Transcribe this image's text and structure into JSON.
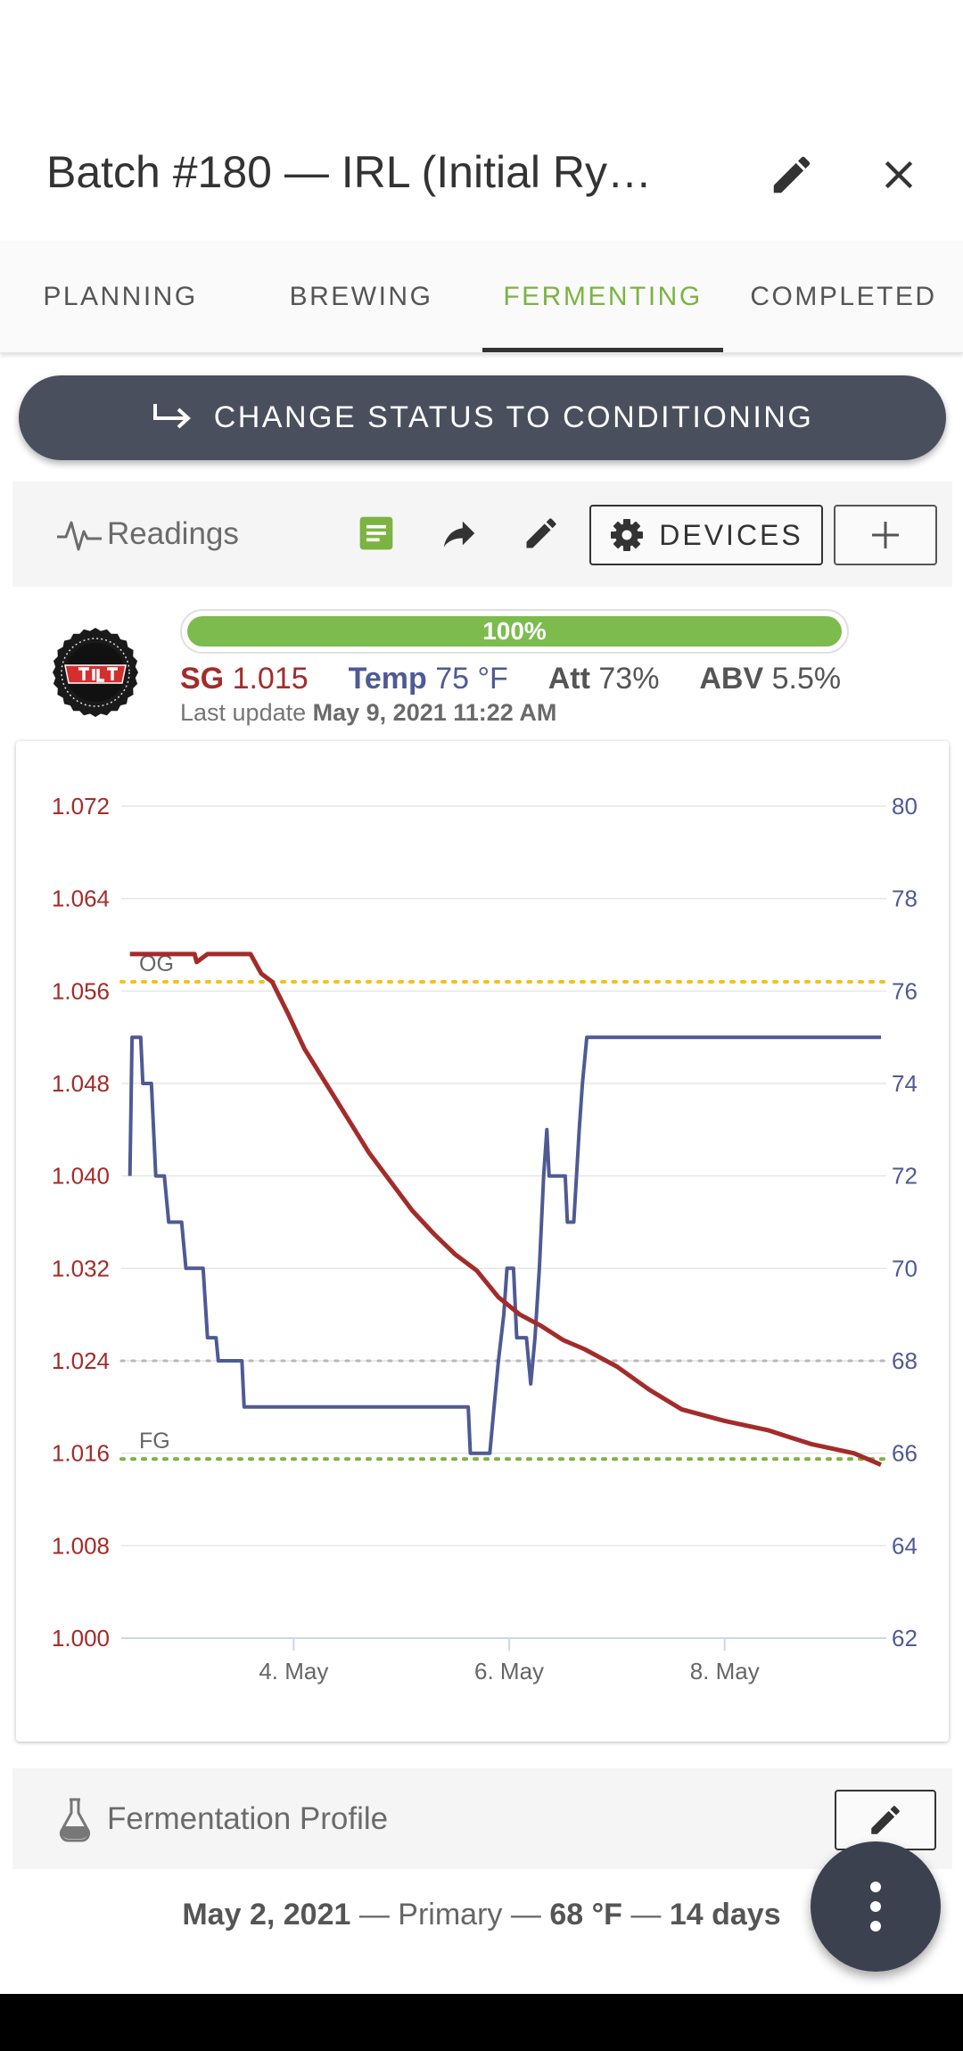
{
  "header": {
    "title": "Batch #180 — IRL (Initial Ry…"
  },
  "tabs": [
    {
      "label": "PLANNING",
      "active": false
    },
    {
      "label": "BREWING",
      "active": false
    },
    {
      "label": "FERMENTING",
      "active": true
    },
    {
      "label": "COMPLETED",
      "active": false
    }
  ],
  "status_button": {
    "label": "CHANGE STATUS TO CONDITIONING"
  },
  "readings": {
    "label": "Readings",
    "devices_label": "DEVICES"
  },
  "device": {
    "progress_text": "100%",
    "progress_value": 100,
    "sg_label": "SG",
    "sg_value": "1.015",
    "temp_label": "Temp",
    "temp_value": "75 °F",
    "att_label": "Att",
    "att_value": "73%",
    "abv_label": "ABV",
    "abv_value": "5.5%",
    "last_update_label": "Last update",
    "last_update_value": "May 9, 2021 11:22 AM"
  },
  "colors": {
    "gravity": "#a32c2a",
    "temperature": "#4f5a94",
    "accent_green": "#7cb342",
    "og_line": "#f0c419",
    "fg_line": "#7cb342",
    "target_temp_line": "#b8b8b8"
  },
  "chart_data": {
    "type": "line",
    "x_unit": "day of May 2021",
    "x_ticks": [
      "4. May",
      "6. May",
      "8. May"
    ],
    "x_tick_values": [
      4,
      6,
      8
    ],
    "xlim": [
      2.4,
      9.5
    ],
    "y_left": {
      "ticks": [
        "1.072",
        "1.064",
        "1.056",
        "1.048",
        "1.040",
        "1.032",
        "1.024",
        "1.016",
        "1.008",
        "1.000"
      ],
      "range": [
        1.0,
        1.072
      ]
    },
    "y_right": {
      "ticks": [
        "80",
        "78",
        "76",
        "74",
        "72",
        "70",
        "68",
        "66",
        "64",
        "62"
      ],
      "range": [
        62,
        80
      ]
    },
    "annotations": [
      {
        "label": "OG",
        "gravity": 1.0568
      },
      {
        "label": "FG",
        "gravity": 1.0155
      }
    ],
    "target_temperature": 68,
    "series": [
      {
        "axis": "left",
        "color": "#a32c2a",
        "points": [
          [
            2.48,
            1.0592
          ],
          [
            3.08,
            1.0592
          ],
          [
            3.1,
            1.0585
          ],
          [
            3.2,
            1.0592
          ],
          [
            3.6,
            1.0592
          ],
          [
            3.7,
            1.0575
          ],
          [
            3.8,
            1.0568
          ],
          [
            3.95,
            1.054
          ],
          [
            4.1,
            1.051
          ],
          [
            4.3,
            1.048
          ],
          [
            4.5,
            1.045
          ],
          [
            4.7,
            1.042
          ],
          [
            4.9,
            1.0395
          ],
          [
            5.1,
            1.037
          ],
          [
            5.3,
            1.035
          ],
          [
            5.5,
            1.0332
          ],
          [
            5.7,
            1.0318
          ],
          [
            5.9,
            1.0295
          ],
          [
            6.1,
            1.028
          ],
          [
            6.3,
            1.027
          ],
          [
            6.5,
            1.0258
          ],
          [
            6.7,
            1.025
          ],
          [
            7.0,
            1.0235
          ],
          [
            7.3,
            1.0215
          ],
          [
            7.6,
            1.0198
          ],
          [
            8.0,
            1.0188
          ],
          [
            8.4,
            1.018
          ],
          [
            8.8,
            1.0168
          ],
          [
            9.2,
            1.016
          ],
          [
            9.45,
            1.015
          ]
        ]
      },
      {
        "axis": "right",
        "color": "#4f5a94",
        "points": [
          [
            2.48,
            72
          ],
          [
            2.5,
            75
          ],
          [
            2.58,
            75
          ],
          [
            2.6,
            74
          ],
          [
            2.68,
            74
          ],
          [
            2.72,
            72
          ],
          [
            2.8,
            72
          ],
          [
            2.84,
            71
          ],
          [
            2.96,
            71
          ],
          [
            3.0,
            70
          ],
          [
            3.16,
            70
          ],
          [
            3.2,
            68.5
          ],
          [
            3.28,
            68.5
          ],
          [
            3.3,
            68
          ],
          [
            3.52,
            68
          ],
          [
            3.54,
            67
          ],
          [
            5.62,
            67
          ],
          [
            5.64,
            66
          ],
          [
            5.82,
            66
          ],
          [
            5.86,
            67
          ],
          [
            5.9,
            68
          ],
          [
            5.95,
            69
          ],
          [
            5.98,
            70
          ],
          [
            6.04,
            70
          ],
          [
            6.07,
            68.5
          ],
          [
            6.16,
            68.5
          ],
          [
            6.2,
            67.5
          ],
          [
            6.24,
            68.5
          ],
          [
            6.28,
            70
          ],
          [
            6.32,
            72
          ],
          [
            6.35,
            73
          ],
          [
            6.37,
            72
          ],
          [
            6.52,
            72
          ],
          [
            6.54,
            71
          ],
          [
            6.6,
            71
          ],
          [
            6.65,
            73
          ],
          [
            6.68,
            74
          ],
          [
            6.72,
            75
          ],
          [
            9.45,
            75
          ]
        ]
      }
    ]
  },
  "profile": {
    "label": "Fermentation Profile",
    "date": "May 2, 2021",
    "sep1": " — ",
    "step": "Primary",
    "sep2": " — ",
    "temp": "68 °F",
    "sep3": " — ",
    "duration": "14 days"
  }
}
